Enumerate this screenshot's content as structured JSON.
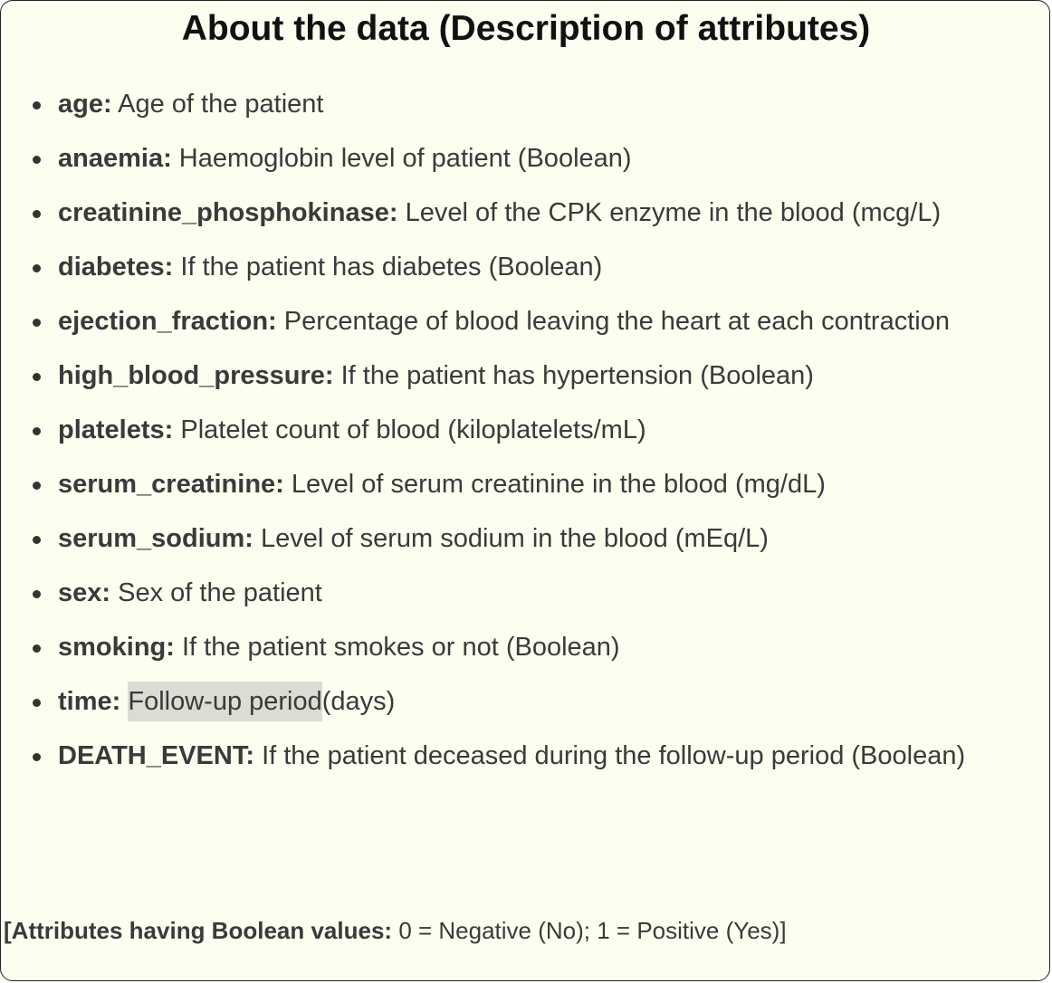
{
  "title": "About the data (Description of attributes)",
  "attributes": [
    {
      "name": "age:",
      "desc": "Age of the patient"
    },
    {
      "name": "anaemia:",
      "desc": "Haemoglobin level of patient (Boolean)"
    },
    {
      "name": "creatinine_phosphokinase:",
      "desc": "Level of the CPK enzyme in the blood (mcg/L)"
    },
    {
      "name": "diabetes:",
      "desc": "If the patient has diabetes (Boolean)"
    },
    {
      "name": "ejection_fraction:",
      "desc": "Percentage of blood leaving the heart at each contraction"
    },
    {
      "name": "high_blood_pressure:",
      "desc": "If the patient has hypertension (Boolean)"
    },
    {
      "name": "platelets:",
      "desc": "Platelet count of blood (kiloplatelets/mL)"
    },
    {
      "name": "serum_creatinine:",
      "desc": "Level of serum creatinine in the blood (mg/dL)"
    },
    {
      "name": "serum_sodium:",
      "desc": "Level of serum sodium in the blood (mEq/L)"
    },
    {
      "name": "sex:",
      "desc": "Sex of the patient"
    },
    {
      "name": "smoking:",
      "desc": "If the patient smokes or not (Boolean)"
    },
    {
      "name": "time:",
      "desc_highlight": "Follow-up period",
      "desc": "(days)"
    },
    {
      "name": "DEATH_EVENT:",
      "desc": "If the patient deceased during the follow-up period (Boolean)"
    }
  ],
  "footer": {
    "open": "[",
    "bold": "Attributes having Boolean values:",
    "text": "0 = Negative (No); 1 = Positive (Yes)]"
  }
}
